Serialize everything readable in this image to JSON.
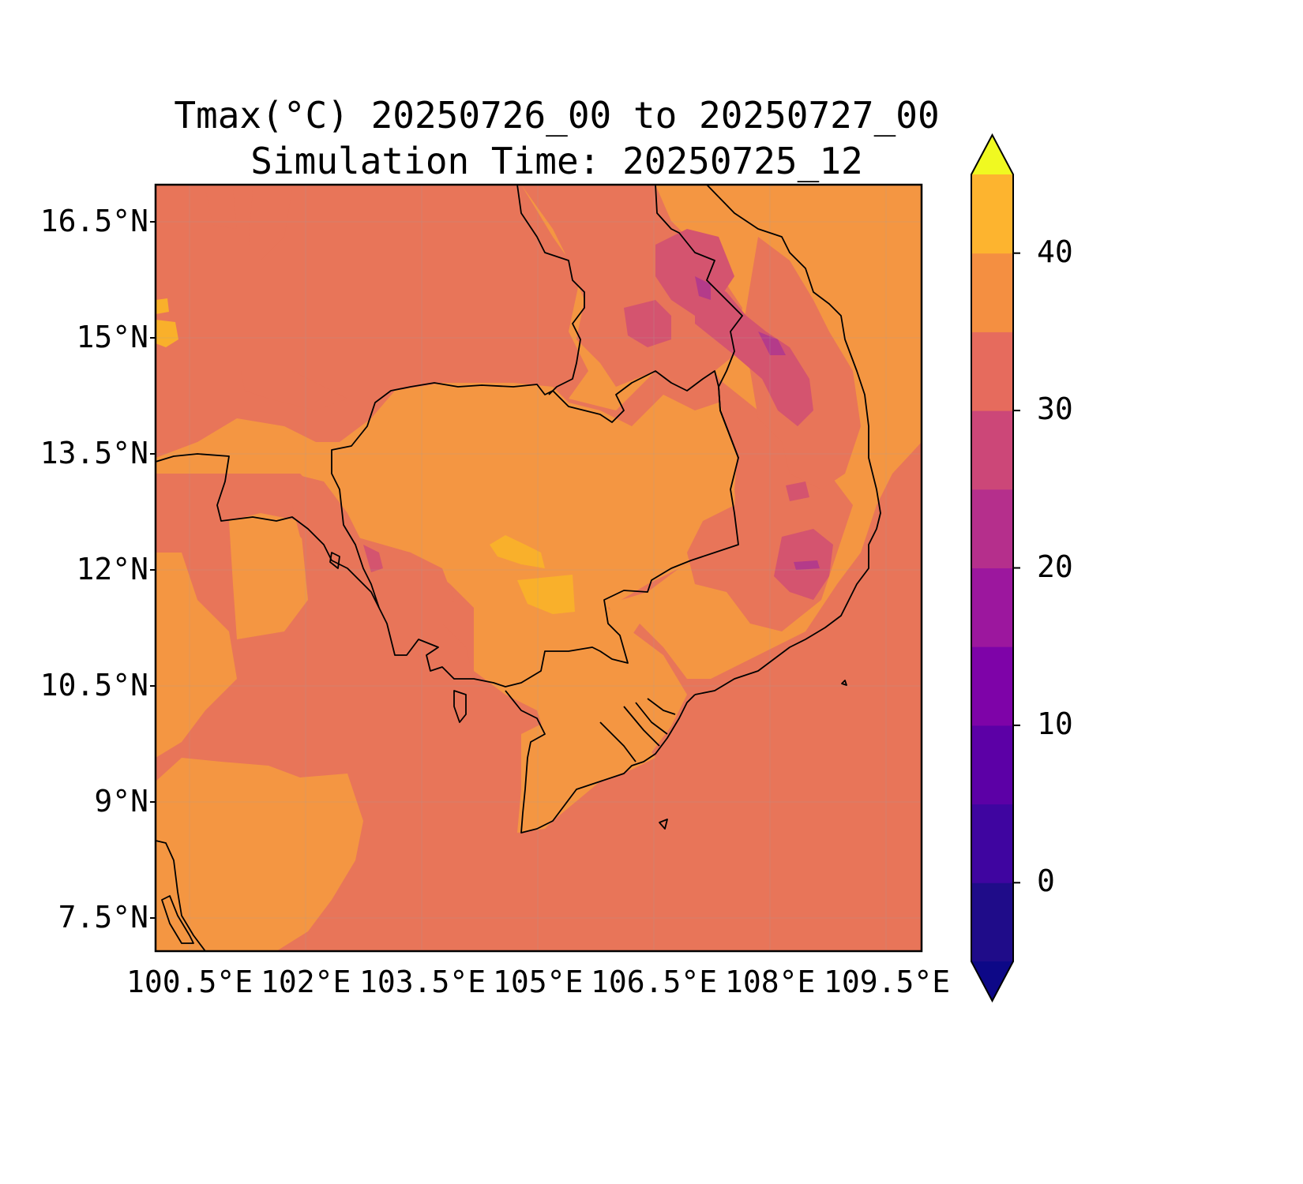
{
  "title": {
    "line1": "Tmax(°C) 20250726_00 to 20250727_00",
    "line2": "Simulation Time: 20250725_12"
  },
  "map": {
    "lat_ticks": [
      "16.5°N",
      "15°N",
      "13.5°N",
      "12°N",
      "10.5°N",
      "9°N",
      "7.5°N"
    ],
    "lon_ticks": [
      "100.5°E",
      "102°E",
      "103.5°E",
      "105°E",
      "106.5°E",
      "108°E",
      "109.5°E"
    ],
    "lon_range": [
      100.5,
      110.4
    ],
    "lat_range": [
      7.0,
      16.9
    ]
  },
  "colorbar": {
    "levels": [
      -5,
      0,
      5,
      10,
      15,
      20,
      25,
      30,
      35,
      40,
      45
    ],
    "colors": [
      "#1f0c89",
      "#3f05a0",
      "#5c00a6",
      "#7e03a8",
      "#9c179e",
      "#b52f8c",
      "#cc4778",
      "#e66b5d",
      "#f48f41",
      "#fdb42f",
      "#f2e224"
    ],
    "under_color": "#0d0887",
    "over_color": "#f0f921",
    "tick_values": [
      0,
      10,
      20,
      30,
      40
    ],
    "tick_labels": [
      "0",
      "10",
      "20",
      "30",
      "40"
    ]
  },
  "colors": {
    "temp_25_30": "#e87559",
    "temp_30_35": "#f49642",
    "temp_20_25": "#d4546f",
    "temp_15_20": "#b43b8a",
    "temp_35_40": "#f9b02b",
    "coastline": "#000000"
  }
}
